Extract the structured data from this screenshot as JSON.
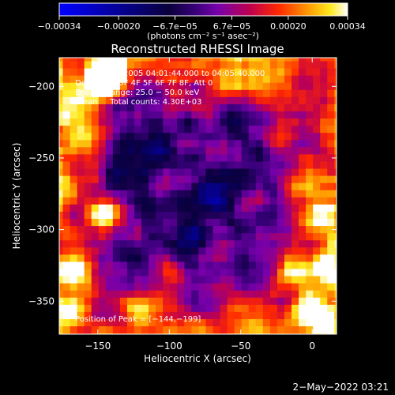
{
  "chart_data": {
    "type": "heatmap",
    "title": "Reconstructed RHESSI Image",
    "xlabel": "Heliocentric X (arcsec)",
    "ylabel": "Heliocentric Y (arcsec)",
    "xlim": [
      -177,
      17
    ],
    "ylim": [
      -373,
      -180
    ],
    "x_ticks": [
      -150,
      -100,
      -50,
      0
    ],
    "y_ticks": [
      -200,
      -250,
      -300,
      -350
    ],
    "x_tick_labels": [
      "−150",
      "−100",
      "−50",
      "0"
    ],
    "y_tick_labels": [
      "−200",
      "−250",
      "−300",
      "−350"
    ],
    "colorbar": {
      "range": [
        -0.00034,
        0.00034
      ],
      "ticks": [
        -0.00034,
        -0.0002,
        -6.7e-05,
        6.7e-05,
        0.0002,
        0.00034
      ],
      "tick_labels": [
        "−0.00034",
        "−0.00020",
        "−6.7e−05",
        "6.7e−05",
        "0.00020",
        "0.00034"
      ],
      "unit_label": "(photons cm⁻² s⁻¹ asec⁻²)",
      "colors": [
        "#0000ff",
        "#000000",
        "#800080",
        "#ff0000",
        "#ffa500",
        "#ffff00",
        "#ffffff"
      ]
    },
    "annotations": [
      "2−Sep−2005 04:01:44.000 to 04:05:40.000",
      "Detectors: 3F 4F 5F 6F 7F 8F, Att 0",
      "Energy Range: 25.0 − 50.0 keV",
      "Clean     Total counts: 4.30E+03"
    ],
    "peak_label": "Position of Peak = [−144,−199]",
    "peak_position": [
      -144,
      -199
    ],
    "hotspots": [
      {
        "x": -150,
        "y": -198,
        "v": 1.0
      },
      {
        "x": -140,
        "y": -188,
        "v": 0.9
      },
      {
        "x": -170,
        "y": -215,
        "v": 0.55
      },
      {
        "x": -160,
        "y": -240,
        "v": 0.45
      },
      {
        "x": -165,
        "y": -330,
        "v": 0.55
      },
      {
        "x": -170,
        "y": -355,
        "v": 0.5
      },
      {
        "x": -145,
        "y": -290,
        "v": 0.7
      },
      {
        "x": -120,
        "y": -355,
        "v": 0.55
      },
      {
        "x": -100,
        "y": -330,
        "v": 0.35
      },
      {
        "x": -60,
        "y": -195,
        "v": 0.45
      },
      {
        "x": -30,
        "y": -200,
        "v": 0.5
      },
      {
        "x": -20,
        "y": -230,
        "v": 0.45
      },
      {
        "x": -10,
        "y": -270,
        "v": 0.5
      },
      {
        "x": 5,
        "y": -290,
        "v": 0.75
      },
      {
        "x": 10,
        "y": -325,
        "v": 0.6
      },
      {
        "x": -15,
        "y": -330,
        "v": 0.75
      },
      {
        "x": -5,
        "y": -355,
        "v": 0.65
      },
      {
        "x": 10,
        "y": -365,
        "v": 0.7
      },
      {
        "x": -40,
        "y": -360,
        "v": 0.4
      },
      {
        "x": -175,
        "y": -270,
        "v": 0.4
      }
    ],
    "coldspots": [
      {
        "x": -110,
        "y": -245,
        "v": -0.55
      },
      {
        "x": -70,
        "y": -275,
        "v": -0.45
      },
      {
        "x": -85,
        "y": -305,
        "v": -0.35
      },
      {
        "x": -130,
        "y": -260,
        "v": -0.3
      }
    ]
  },
  "footer": {
    "timestamp": "2−May−2022 03:21"
  }
}
